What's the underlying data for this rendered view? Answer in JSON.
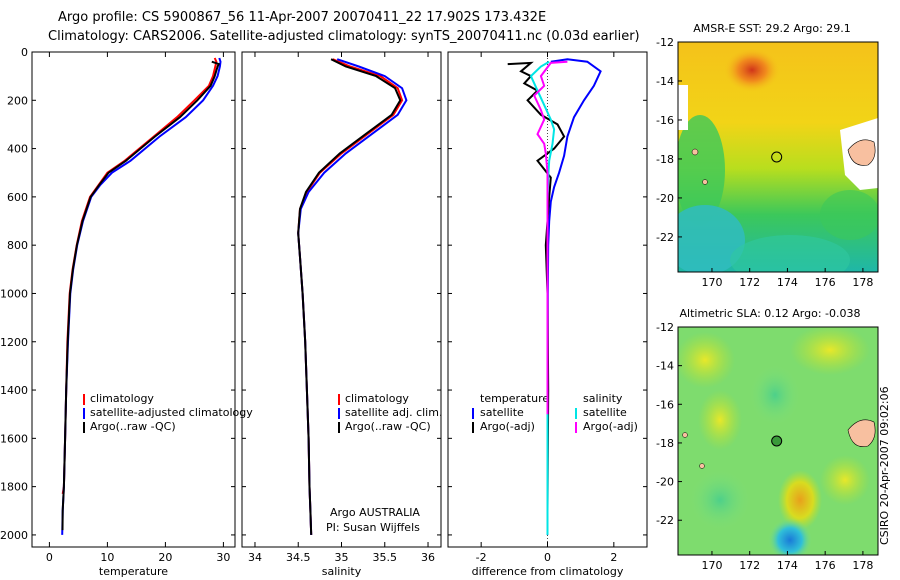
{
  "figure": {
    "title_line1": "Argo profile: CS 5900867_56 11-Apr-2007 20070411_22 17.902S 173.432E",
    "title_line2": "Climatology: CARS2006. Satellite-adjusted climatology: synTS_20070411.nc (0.03d earlier)",
    "stamp": "CSIRO 20-Apr-2007 09:02:06",
    "colors": {
      "climatology": "#ff0000",
      "satellite": "#0000ff",
      "argo": "#000000",
      "sal_satellite": "#00e5e5",
      "sal_argo": "#ff00ff",
      "grid": "#000000"
    }
  },
  "chart_data": [
    {
      "id": "temperature",
      "type": "line",
      "xlabel": "temperature",
      "xlim": [
        -3,
        32
      ],
      "ylim": [
        2050,
        0
      ],
      "xticks": [
        0,
        10,
        20,
        30
      ],
      "yticks": [
        0,
        200,
        400,
        600,
        800,
        1000,
        1200,
        1400,
        1600,
        1800,
        2000
      ],
      "legend": [
        "climatology",
        "satellite-adjusted climatology",
        "Argo(..raw -QC)"
      ],
      "legend_loc": "lower-left",
      "series": [
        {
          "name": "climatology",
          "color": "#ff0000",
          "x": [
            28.5,
            28.8,
            28.6,
            28.2,
            27.5,
            25,
            22,
            18,
            13,
            10,
            8.5,
            7,
            5.6,
            4.7,
            4,
            3.5,
            3.1,
            2.9,
            2.7,
            2.5,
            2.3
          ],
          "y": [
            25,
            40,
            60,
            100,
            140,
            200,
            270,
            350,
            450,
            500,
            550,
            600,
            700,
            800,
            900,
            1000,
            1200,
            1400,
            1600,
            1800,
            1830
          ]
        },
        {
          "name": "satellite-adjusted climatology",
          "color": "#0000ff",
          "x": [
            29.3,
            29.5,
            29.4,
            29,
            28.2,
            26.5,
            23.5,
            19,
            14,
            10.8,
            8.8,
            7.2,
            5.8,
            4.8,
            4.1,
            3.6,
            3.2,
            2.9,
            2.7,
            2.5,
            2.3,
            2.2
          ],
          "y": [
            25,
            40,
            60,
            100,
            140,
            200,
            270,
            350,
            450,
            500,
            550,
            600,
            700,
            800,
            900,
            1000,
            1200,
            1400,
            1600,
            1800,
            1900,
            2000
          ]
        },
        {
          "name": "Argo(..raw -QC)",
          "color": "#000000",
          "x": [
            28,
            29.2,
            29.0,
            28.5,
            27.8,
            25.5,
            22.5,
            18.2,
            13.2,
            10.2,
            8.6,
            7.1,
            5.7,
            4.75,
            4.05,
            3.55,
            3.15,
            2.9,
            2.7,
            2.5,
            2.3,
            2.25
          ],
          "y": [
            40,
            50,
            60,
            100,
            140,
            200,
            270,
            350,
            450,
            500,
            550,
            600,
            700,
            800,
            900,
            1000,
            1200,
            1400,
            1600,
            1800,
            1900,
            1980
          ]
        }
      ]
    },
    {
      "id": "salinity",
      "type": "line",
      "xlabel": "salinity",
      "xlim": [
        33.85,
        36.15
      ],
      "ylim": [
        2050,
        0
      ],
      "xticks": [
        34,
        34.5,
        35,
        35.5,
        36
      ],
      "legend": [
        "climatology",
        "satellite adj. clim.",
        "Argo(..raw -QC)"
      ],
      "legend_loc": "lower-left",
      "annotation": [
        "Argo AUSTRALIA",
        "PI: Susan Wijffels"
      ],
      "series": [
        {
          "name": "climatology",
          "color": "#ff0000",
          "x": [
            34.9,
            35.1,
            35.45,
            35.65,
            35.7,
            35.6,
            35.3,
            35,
            34.75,
            34.6,
            34.52,
            34.5,
            34.52,
            34.55,
            34.58,
            34.6,
            34.62,
            34.63,
            34.64,
            34.65
          ],
          "y": [
            30,
            60,
            100,
            150,
            200,
            260,
            340,
            420,
            500,
            580,
            650,
            750,
            850,
            1000,
            1200,
            1400,
            1600,
            1800,
            1900,
            2000
          ]
        },
        {
          "name": "satellite adj. clim.",
          "color": "#0000ff",
          "x": [
            34.95,
            35.2,
            35.5,
            35.7,
            35.75,
            35.65,
            35.35,
            35.05,
            34.8,
            34.62,
            34.53,
            34.5,
            34.52,
            34.55,
            34.58,
            34.6,
            34.62,
            34.63,
            34.64,
            34.65
          ],
          "y": [
            30,
            60,
            100,
            150,
            200,
            260,
            340,
            420,
            500,
            580,
            650,
            750,
            850,
            1000,
            1200,
            1400,
            1600,
            1800,
            1900,
            2000
          ]
        },
        {
          "name": "Argo(..raw -QC)",
          "color": "#000000",
          "x": [
            34.88,
            35.05,
            35.4,
            35.62,
            35.68,
            35.58,
            35.28,
            34.98,
            34.74,
            34.59,
            34.52,
            34.5,
            34.52,
            34.55,
            34.58,
            34.6,
            34.62,
            34.63,
            34.64,
            34.65
          ],
          "y": [
            30,
            60,
            100,
            150,
            200,
            260,
            340,
            420,
            500,
            580,
            650,
            750,
            850,
            1000,
            1200,
            1400,
            1600,
            1800,
            1900,
            2000
          ]
        }
      ]
    },
    {
      "id": "difference",
      "type": "line",
      "xlabel": "difference from climatology",
      "xlim": [
        -3,
        3
      ],
      "ylim": [
        2050,
        0
      ],
      "xticks": [
        -2,
        0,
        2
      ],
      "legend_left_title": "temperature",
      "legend_right_title": "salinity",
      "legend_left": [
        "satellite",
        "Argo(-adj)"
      ],
      "legend_right": [
        "satellite",
        "Argo(-adj)"
      ],
      "series": [
        {
          "name": "temperature satellite",
          "color": "#0000ff",
          "x": [
            0.1,
            0.6,
            1.2,
            1.6,
            1.4,
            1.1,
            0.8,
            0.6,
            0.5,
            0.35,
            0.2,
            0.1,
            0.05,
            0.02,
            0.01,
            0,
            0,
            0
          ],
          "y": [
            40,
            30,
            40,
            80,
            140,
            200,
            270,
            350,
            430,
            500,
            560,
            620,
            700,
            800,
            1000,
            1400,
            1800,
            2000
          ]
        },
        {
          "name": "temperature Argo(-adj)",
          "color": "#000000",
          "x": [
            -1.2,
            -0.5,
            -0.8,
            -0.5,
            -0.7,
            -0.3,
            -0.6,
            -0.2,
            0.3,
            0.5,
            0.2,
            -0.3,
            0.1,
            0.05,
            -0.05,
            0,
            0.02,
            0
          ],
          "y": [
            50,
            45,
            80,
            100,
            130,
            160,
            200,
            260,
            300,
            350,
            400,
            450,
            520,
            600,
            800,
            1000,
            1400,
            1900
          ]
        },
        {
          "name": "salinity satellite",
          "color": "#00e5e5",
          "x": [
            0.05,
            -0.2,
            -0.5,
            -0.3,
            -0.1,
            0.1,
            0.2,
            0.15,
            0.05,
            0.02,
            0,
            0,
            0
          ],
          "y": [
            40,
            60,
            100,
            160,
            220,
            280,
            320,
            380,
            450,
            520,
            620,
            1000,
            2000
          ]
        },
        {
          "name": "salinity Argo(-adj)",
          "color": "#ff00ff",
          "x": [
            0.6,
            0.1,
            -0.2,
            -0.1,
            -0.4,
            -0.2,
            -0.1,
            -0.3,
            -0.1,
            -0.05,
            0,
            0,
            0
          ],
          "y": [
            40,
            45,
            100,
            140,
            180,
            240,
            280,
            340,
            380,
            420,
            500,
            800,
            1500
          ]
        }
      ]
    },
    {
      "id": "sst_map",
      "type": "heatmap",
      "title": "AMSR-E SST: 29.2  Argo: 29.1",
      "xlim": [
        168.2,
        178.8
      ],
      "ylim": [
        -23.8,
        -12
      ],
      "xticks": [
        170,
        172,
        174,
        176,
        178
      ],
      "yticks": [
        -12,
        -14,
        -16,
        -18,
        -20,
        -22
      ],
      "argo_position": [
        173.43,
        -17.9
      ]
    },
    {
      "id": "sla_map",
      "type": "heatmap",
      "title": "Altimetric SLA: 0.12  Argo: -0.038",
      "xlim": [
        168.2,
        178.8
      ],
      "ylim": [
        -23.8,
        -12
      ],
      "xticks": [
        170,
        172,
        174,
        176,
        178
      ],
      "yticks": [
        -12,
        -14,
        -16,
        -18,
        -20,
        -22
      ],
      "argo_position": [
        173.43,
        -17.9
      ]
    }
  ]
}
